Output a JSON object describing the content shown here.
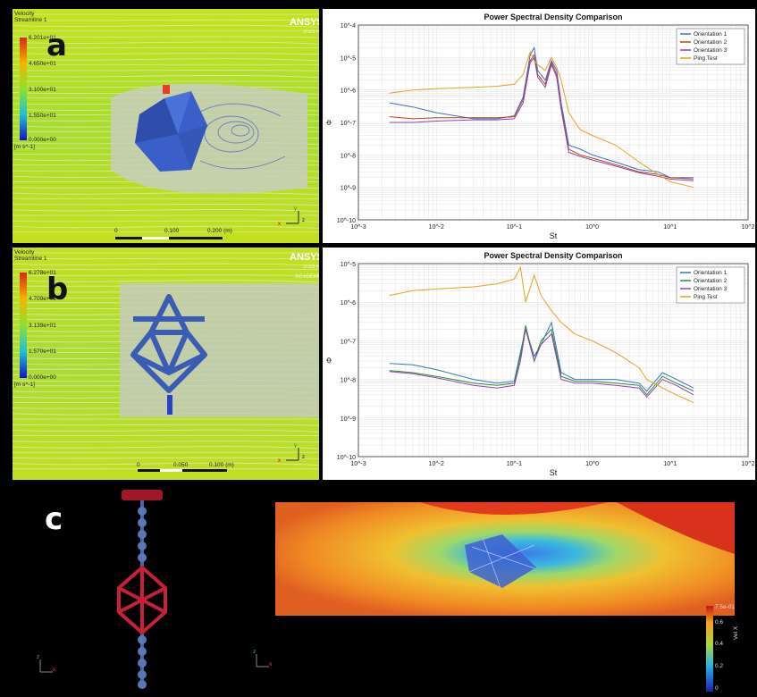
{
  "panel_a": {
    "label": "a",
    "brand": "ANSYS",
    "brand_sub": "2023 R1",
    "legend_title": "Velocity",
    "legend_subtitle": "Streamline 1",
    "legend_ticks": [
      "6.201e+01",
      "4.650e+01",
      "3.100e+01",
      "1.550e+01",
      "0.000e+00"
    ],
    "legend_unit": "[m s^-1]",
    "scalebar": [
      "0",
      "0.100",
      "0.200 (m)",
      "0.050",
      "0.150"
    ],
    "axes": [
      "x",
      "y",
      "z"
    ]
  },
  "panel_b": {
    "label": "b",
    "brand": "ANSYS",
    "brand_sub": "2023 R1 ACADEMIC",
    "legend_title": "Velocity",
    "legend_subtitle": "Streamline 1",
    "legend_ticks": [
      "6.278e+01",
      "4.709e+01",
      "3.139e+01",
      "1.570e+01",
      "0.000e+00"
    ],
    "legend_unit": "[m s^-1]",
    "scalebar": [
      "0",
      "0.050",
      "0.100 (m)",
      "0.025",
      "0.075"
    ],
    "axes": [
      "x",
      "y",
      "z"
    ]
  },
  "panel_c": {
    "label": "c",
    "colorbar_ticks": [
      "0.6",
      "0.4",
      "0.2",
      "0"
    ],
    "colorbar_top": "7.5e-01",
    "colorbar_title": "Vel X",
    "axes": [
      "x",
      "z"
    ],
    "colors": {
      "red": "#c01c2c",
      "steel": "#4a68a8"
    }
  },
  "chart_data": [
    {
      "type": "line",
      "title": "Power Spectral Density Comparison",
      "xlabel": "St",
      "ylabel": "Φ",
      "xscale": "log",
      "yscale": "log",
      "xlim": [
        0.001,
        100
      ],
      "ylim": [
        1e-10,
        0.0001
      ],
      "xticks": [
        "10^-3",
        "10^-2",
        "10^-1",
        "10^0",
        "10^1",
        "10^2"
      ],
      "yticks": [
        "10^-10",
        "10^-9",
        "10^-8",
        "10^-7",
        "10^-6",
        "10^-5",
        "10^-4"
      ],
      "grid": true,
      "legend_position": "top-right",
      "series": [
        {
          "name": "Orientation 1",
          "color": "#3572c6",
          "x": [
            0.0025,
            0.005,
            0.01,
            0.03,
            0.06,
            0.1,
            0.13,
            0.16,
            0.18,
            0.2,
            0.25,
            0.3,
            0.35,
            0.4,
            0.5,
            0.7,
            1,
            2,
            4,
            7,
            10,
            20
          ],
          "y": [
            4e-07,
            3e-07,
            2e-07,
            1.3e-07,
            1.3e-07,
            1.6e-07,
            6e-07,
            1.2e-05,
            2e-05,
            4e-06,
            2e-06,
            8e-06,
            4e-06,
            4e-07,
            2e-08,
            1.5e-08,
            1e-08,
            6e-09,
            3.5e-09,
            3e-09,
            2e-09,
            2e-09
          ]
        },
        {
          "name": "Orientation 2",
          "color": "#b8451a",
          "x": [
            0.0025,
            0.005,
            0.01,
            0.03,
            0.06,
            0.1,
            0.13,
            0.16,
            0.18,
            0.2,
            0.25,
            0.3,
            0.35,
            0.4,
            0.5,
            0.7,
            1,
            2,
            4,
            7,
            10,
            20
          ],
          "y": [
            1.5e-07,
            1.3e-07,
            1.4e-07,
            1.4e-07,
            1.4e-07,
            1.5e-07,
            5e-07,
            8e-06,
            1.2e-05,
            3e-06,
            1.5e-06,
            7e-06,
            3e-06,
            3e-07,
            1.5e-08,
            1e-08,
            8e-09,
            5e-09,
            3e-09,
            2.5e-09,
            2e-09,
            1.8e-09
          ]
        },
        {
          "name": "Orientation 3",
          "color": "#8e44a8",
          "x": [
            0.0025,
            0.005,
            0.01,
            0.03,
            0.06,
            0.1,
            0.13,
            0.16,
            0.18,
            0.2,
            0.25,
            0.3,
            0.35,
            0.4,
            0.5,
            0.7,
            1,
            2,
            4,
            7,
            10,
            20
          ],
          "y": [
            1e-07,
            1e-07,
            1.1e-07,
            1.2e-07,
            1.2e-07,
            1.3e-07,
            4e-07,
            7e-06,
            1e-05,
            2.5e-06,
            1.2e-06,
            6e-06,
            2.5e-06,
            2.5e-07,
            1.2e-08,
            9e-09,
            7e-09,
            4.5e-09,
            2.8e-09,
            2.2e-09,
            1.8e-09,
            1.6e-09
          ]
        },
        {
          "name": "Ping Test",
          "color": "#e8a020",
          "x": [
            0.0025,
            0.005,
            0.01,
            0.03,
            0.06,
            0.1,
            0.13,
            0.16,
            0.18,
            0.2,
            0.25,
            0.3,
            0.35,
            0.4,
            0.5,
            0.7,
            1,
            2,
            4,
            7,
            10,
            20
          ],
          "y": [
            8e-07,
            1e-06,
            1.1e-06,
            1.2e-06,
            1.3e-06,
            1.5e-06,
            3e-06,
            1.5e-05,
            8e-06,
            6e-06,
            4e-06,
            1e-05,
            5e-06,
            2e-06,
            2e-07,
            6e-08,
            4e-08,
            2e-08,
            6e-09,
            2.5e-09,
            1.5e-09,
            1e-09
          ]
        }
      ]
    },
    {
      "type": "line",
      "title": "Power Spectral Density Comparison",
      "xlabel": "St",
      "ylabel": "Φ",
      "xscale": "log",
      "yscale": "log",
      "xlim": [
        0.001,
        100
      ],
      "ylim": [
        1e-10,
        1e-05
      ],
      "xticks": [
        "10^-3",
        "10^-2",
        "10^-1",
        "10^0",
        "10^1",
        "10^2"
      ],
      "yticks": [
        "10^-10",
        "10^-9",
        "10^-8",
        "10^-7",
        "10^-6",
        "10^-5"
      ],
      "grid": true,
      "legend_position": "top-right",
      "series": [
        {
          "name": "Orientation 1",
          "color": "#3572c6",
          "x": [
            0.0025,
            0.005,
            0.01,
            0.03,
            0.06,
            0.1,
            0.12,
            0.14,
            0.18,
            0.22,
            0.3,
            0.4,
            0.6,
            1,
            2,
            4,
            5,
            8,
            12,
            20
          ],
          "y": [
            2.6e-08,
            2.4e-08,
            1.8e-08,
            1e-08,
            8e-09,
            9e-09,
            5e-08,
            2e-07,
            4e-08,
            8e-08,
            3e-07,
            1.5e-08,
            1e-08,
            1e-08,
            1e-08,
            8e-09,
            5e-09,
            1.5e-08,
            1e-08,
            6e-09
          ]
        },
        {
          "name": "Orientation 2",
          "color": "#2f8a2f",
          "x": [
            0.0025,
            0.005,
            0.01,
            0.03,
            0.06,
            0.1,
            0.12,
            0.14,
            0.18,
            0.22,
            0.3,
            0.4,
            0.6,
            1,
            2,
            4,
            5,
            8,
            12,
            20
          ],
          "y": [
            1.7e-08,
            1.5e-08,
            1.2e-08,
            8e-09,
            7e-09,
            8e-09,
            4e-08,
            2.5e-07,
            3e-08,
            1e-07,
            2e-07,
            1.2e-08,
            9e-09,
            9e-09,
            8e-09,
            7e-09,
            4e-09,
            1.2e-08,
            8e-09,
            5e-09
          ]
        },
        {
          "name": "Orientation 3",
          "color": "#8e44a8",
          "x": [
            0.0025,
            0.005,
            0.01,
            0.03,
            0.06,
            0.1,
            0.12,
            0.14,
            0.18,
            0.22,
            0.3,
            0.4,
            0.6,
            1,
            2,
            4,
            5,
            8,
            12,
            20
          ],
          "y": [
            1.6e-08,
            1.4e-08,
            1.1e-08,
            7e-09,
            6e-09,
            7e-09,
            3e-08,
            2e-07,
            3e-08,
            8e-08,
            1.5e-07,
            1e-08,
            8e-09,
            8e-09,
            7e-09,
            6e-09,
            3.5e-09,
            1e-08,
            7e-09,
            4e-09
          ]
        },
        {
          "name": "Ping Test",
          "color": "#e8a020",
          "x": [
            0.0025,
            0.005,
            0.01,
            0.03,
            0.06,
            0.1,
            0.12,
            0.14,
            0.18,
            0.22,
            0.3,
            0.4,
            0.6,
            1,
            2,
            4,
            5,
            8,
            12,
            20
          ],
          "y": [
            1.5e-06,
            2e-06,
            2.2e-06,
            2.5e-06,
            3e-06,
            4e-06,
            8e-06,
            1e-06,
            5e-06,
            1.5e-06,
            6e-07,
            3e-07,
            1.5e-07,
            1e-07,
            5e-08,
            2e-08,
            1e-08,
            6e-09,
            4e-09,
            2.5e-09
          ]
        }
      ]
    }
  ]
}
